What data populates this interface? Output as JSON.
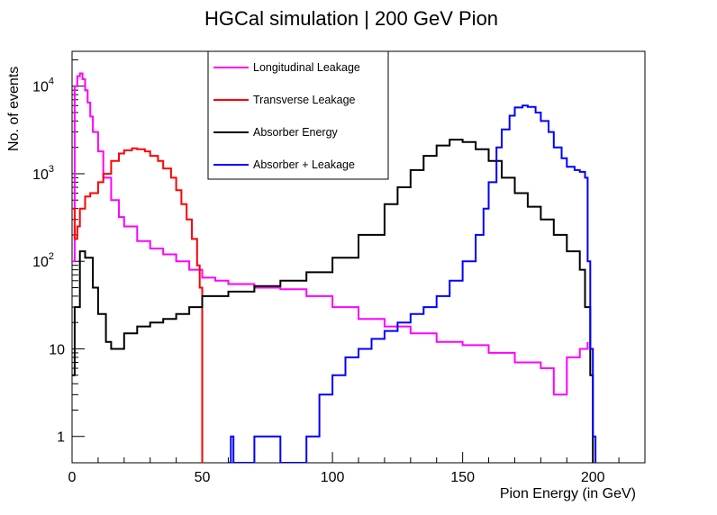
{
  "chart_data": {
    "type": "histogram",
    "title": "HGCal simulation | 200 GeV Pion",
    "xlabel": "Pion Energy (in GeV)",
    "ylabel": "No. of events",
    "xlim": [
      0,
      220
    ],
    "ylim": [
      0.5,
      25000
    ],
    "yscale": "log",
    "x_ticks": [
      "0",
      "50",
      "100",
      "150",
      "200"
    ],
    "y_ticks": [
      {
        "value": 1,
        "label": "1"
      },
      {
        "value": 10,
        "label": "10"
      },
      {
        "value": 100,
        "label": "10",
        "exp": "2"
      },
      {
        "value": 1000,
        "label": "10",
        "exp": "3"
      },
      {
        "value": 10000,
        "label": "10",
        "exp": "4"
      }
    ],
    "legend_position": "top-center",
    "series": [
      {
        "name": "Longitudinal Leakage",
        "color": "#ff00ff",
        "x": [
          0,
          1,
          2,
          3,
          4,
          5,
          6,
          7,
          8,
          10,
          12,
          15,
          18,
          20,
          25,
          30,
          35,
          40,
          45,
          50,
          55,
          60,
          70,
          80,
          90,
          100,
          110,
          120,
          130,
          140,
          150,
          160,
          170,
          180,
          185,
          190,
          195,
          198
        ],
        "y": [
          100,
          10000,
          13000,
          14000,
          12000,
          9000,
          6500,
          4500,
          3000,
          1800,
          900,
          500,
          320,
          250,
          170,
          140,
          120,
          100,
          80,
          65,
          60,
          55,
          50,
          48,
          40,
          30,
          22,
          18,
          15,
          12,
          11,
          9,
          7,
          6,
          3,
          8,
          10,
          12
        ]
      },
      {
        "name": "Transverse Leakage",
        "color": "#ff0000",
        "x": [
          0,
          1,
          2,
          3,
          5,
          7,
          10,
          12,
          15,
          18,
          20,
          23,
          25,
          28,
          30,
          33,
          35,
          38,
          40,
          42,
          44,
          46,
          48,
          49,
          50
        ],
        "y": [
          400,
          180,
          250,
          400,
          550,
          600,
          800,
          1000,
          1400,
          1700,
          1850,
          1950,
          1900,
          1800,
          1600,
          1400,
          1150,
          900,
          650,
          450,
          300,
          180,
          90,
          50,
          0.5
        ]
      },
      {
        "name": "Absorber Energy",
        "color": "#000000",
        "x": [
          0,
          1,
          3,
          5,
          8,
          10,
          13,
          15,
          20,
          25,
          30,
          35,
          40,
          45,
          50,
          60,
          70,
          80,
          90,
          100,
          110,
          120,
          125,
          130,
          135,
          140,
          145,
          150,
          155,
          160,
          165,
          170,
          175,
          180,
          185,
          190,
          195,
          197,
          199,
          200
        ],
        "y": [
          5,
          30,
          130,
          110,
          50,
          25,
          12,
          10,
          15,
          18,
          20,
          22,
          25,
          30,
          40,
          45,
          52,
          60,
          75,
          110,
          200,
          450,
          700,
          1100,
          1600,
          2100,
          2450,
          2300,
          1900,
          1400,
          900,
          600,
          420,
          300,
          200,
          130,
          80,
          30,
          5,
          0.5
        ]
      },
      {
        "name": "Absorber + Leakage",
        "color": "#0000ff",
        "x": [
          60,
          61,
          62,
          70,
          80,
          90,
          95,
          100,
          105,
          110,
          115,
          120,
          125,
          130,
          135,
          140,
          145,
          150,
          155,
          158,
          160,
          163,
          165,
          168,
          170,
          173,
          175,
          178,
          180,
          183,
          185,
          188,
          190,
          193,
          195,
          197,
          198,
          199,
          200,
          201
        ],
        "y": [
          0.5,
          1,
          0.5,
          1,
          0.5,
          1,
          3,
          5,
          8,
          10,
          13,
          16,
          20,
          25,
          30,
          40,
          60,
          100,
          200,
          400,
          800,
          2000,
          3200,
          4600,
          5700,
          6000,
          5800,
          5000,
          4000,
          3000,
          2000,
          1500,
          1200,
          1100,
          1050,
          900,
          100,
          10,
          1,
          0.5
        ]
      }
    ]
  }
}
